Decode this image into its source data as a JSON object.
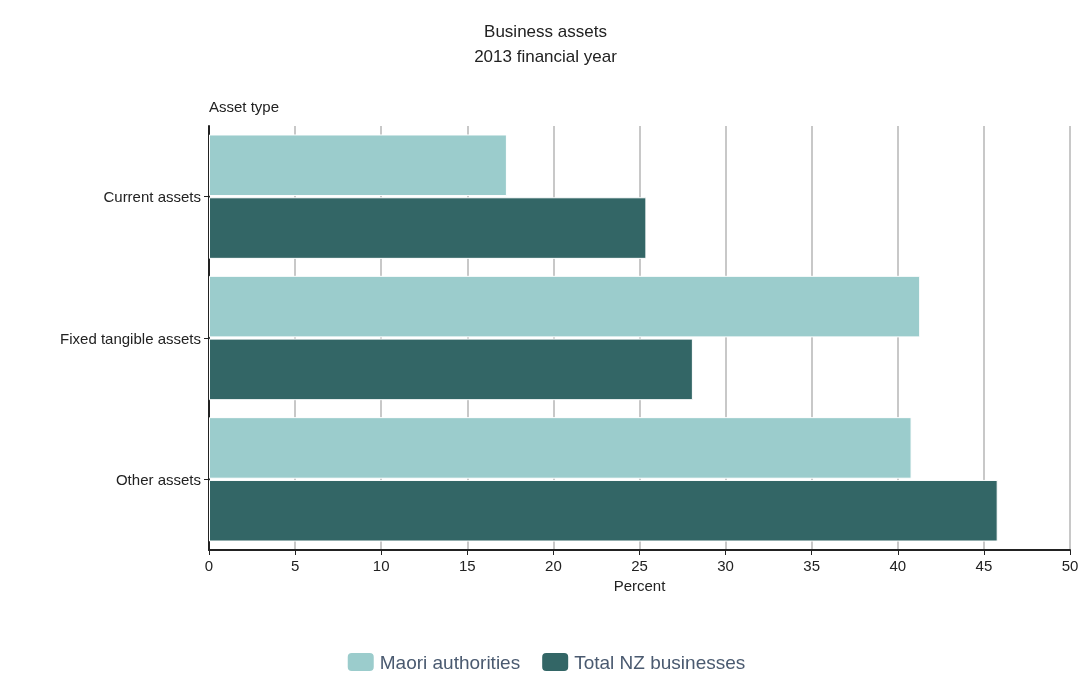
{
  "chart_data": {
    "type": "bar",
    "orientation": "horizontal",
    "title": "Business assets",
    "subtitle": "2013 financial year",
    "ylabel": "Asset type",
    "xlabel": "Percent",
    "categories": [
      "Current assets",
      "Fixed tangible assets",
      "Other assets"
    ],
    "series": [
      {
        "name": "Maori authorities",
        "color": "#9bcccc",
        "values": [
          17.3,
          41.3,
          40.8
        ]
      },
      {
        "name": "Total NZ businesses",
        "color": "#336666",
        "values": [
          25.4,
          28.1,
          45.8
        ]
      }
    ],
    "xlim": [
      0,
      50
    ],
    "xticks": [
      0,
      5,
      10,
      15,
      20,
      25,
      30,
      35,
      40,
      45,
      50
    ],
    "grid": "x",
    "legend": "bottom"
  }
}
